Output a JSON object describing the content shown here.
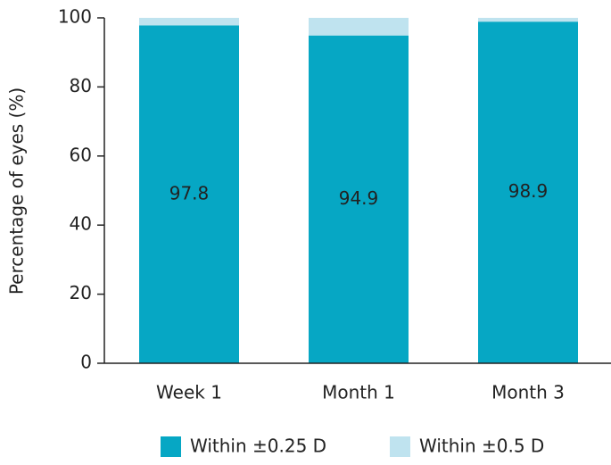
{
  "chart_data": {
    "type": "stacked_bar",
    "categories": [
      "Week 1",
      "Month 1",
      "Month 3"
    ],
    "series": [
      {
        "name": "Within ±0.25 D",
        "color": "#06a7c4",
        "values": [
          97.8,
          94.9,
          98.9
        ],
        "show_labels": true
      },
      {
        "name": "Within ±0.5 D",
        "color": "#bfe3ef",
        "values": [
          2.2,
          5.1,
          1.1
        ],
        "show_labels": false
      }
    ],
    "y_label": "Percentage of eyes (%)",
    "ylim": [
      0,
      100
    ],
    "yticks": [
      0,
      20,
      40,
      60,
      80,
      100
    ],
    "grid": false,
    "legend": "bottom"
  }
}
